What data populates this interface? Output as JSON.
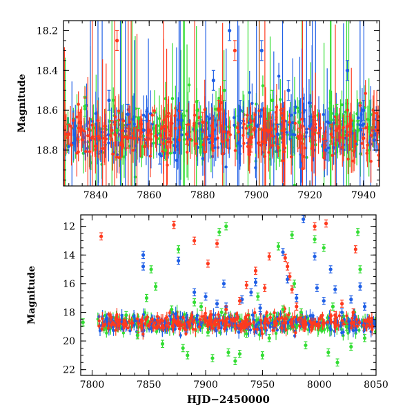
{
  "colors": {
    "blue": "#1f5fe6",
    "green": "#33dd33",
    "red": "#ff3a1e",
    "axis": "#000000"
  },
  "chart_data": [
    {
      "type": "scatter",
      "panel": "top",
      "xlabel": "",
      "ylabel": "Magnitude",
      "xlim": [
        7828,
        7946
      ],
      "ylim": [
        18.98,
        18.15
      ],
      "y_inverted": true,
      "xticks": [
        7840,
        7860,
        7880,
        7900,
        7920,
        7940
      ],
      "yticks": [
        18.2,
        18.4,
        18.6,
        18.8
      ],
      "grid": false,
      "legend": "none",
      "series": [
        {
          "color": "blue",
          "points": [
            [
              7845,
              18.55
            ],
            [
              7852,
              18.62
            ],
            [
              7858,
              18.7
            ],
            [
              7864,
              18.82
            ],
            [
              7872,
              18.65
            ],
            [
              7884,
              18.45
            ],
            [
              7890,
              18.2
            ],
            [
              7894,
              18.6
            ],
            [
              7902,
              18.3
            ],
            [
              7908,
              18.72
            ],
            [
              7912,
              18.5
            ],
            [
              7920,
              18.68
            ],
            [
              7926,
              18.8
            ],
            [
              7934,
              18.4
            ],
            [
              7940,
              18.6
            ],
            [
              7944,
              18.75
            ]
          ]
        },
        {
          "color": "green",
          "points": [
            [
              7836,
              18.58
            ],
            [
              7848,
              18.7
            ],
            [
              7856,
              18.64
            ],
            [
              7866,
              18.8
            ],
            [
              7878,
              18.6
            ],
            [
              7888,
              18.5
            ],
            [
              7898,
              18.72
            ],
            [
              7906,
              18.55
            ],
            [
              7916,
              18.66
            ],
            [
              7930,
              18.62
            ],
            [
              7938,
              18.7
            ]
          ]
        },
        {
          "color": "red",
          "points": [
            [
              7830,
              18.72
            ],
            [
              7834,
              18.66
            ],
            [
              7840,
              18.78
            ],
            [
              7846,
              18.7
            ],
            [
              7848,
              18.25
            ],
            [
              7852,
              18.74
            ],
            [
              7860,
              18.7
            ],
            [
              7866,
              18.68
            ],
            [
              7874,
              18.72
            ],
            [
              7880,
              18.66
            ],
            [
              7886,
              18.6
            ],
            [
              7892,
              18.3
            ],
            [
              7898,
              18.76
            ],
            [
              7904,
              18.7
            ],
            [
              7910,
              18.64
            ],
            [
              7916,
              18.74
            ],
            [
              7922,
              18.7
            ],
            [
              7928,
              18.72
            ],
            [
              7934,
              18.68
            ],
            [
              7940,
              18.74
            ],
            [
              7945,
              18.7
            ]
          ]
        }
      ]
    },
    {
      "type": "scatter",
      "panel": "bottom",
      "xlabel": "HJD−2450000",
      "ylabel": "Magnitude",
      "xlim": [
        7790,
        8050
      ],
      "ylim": [
        22.4,
        11.2
      ],
      "y_inverted": true,
      "xticks": [
        7800,
        7850,
        7900,
        7950,
        8000,
        8050
      ],
      "yticks": [
        12,
        14,
        16,
        18,
        20,
        22
      ],
      "grid": false,
      "legend": "none",
      "series": [
        {
          "color": "blue",
          "points": [
            [
              7845,
              14.0
            ],
            [
              7845,
              14.8
            ],
            [
              7876,
              14.4
            ],
            [
              7890,
              16.6
            ],
            [
              7900,
              16.9
            ],
            [
              7910,
              17.4
            ],
            [
              7916,
              16.0
            ],
            [
              7918,
              17.6
            ],
            [
              7932,
              17.1
            ],
            [
              7940,
              16.6
            ],
            [
              7944,
              15.9
            ],
            [
              7948,
              17.7
            ],
            [
              7968,
              13.8
            ],
            [
              7972,
              15.7
            ],
            [
              7980,
              17.0
            ],
            [
              7986,
              11.5
            ],
            [
              7996,
              14.1
            ],
            [
              7998,
              16.3
            ],
            [
              8004,
              17.2
            ],
            [
              8010,
              15.0
            ],
            [
              8014,
              16.4
            ],
            [
              8020,
              18.0
            ],
            [
              8028,
              17.1
            ],
            [
              8036,
              16.2
            ],
            [
              8040,
              17.6
            ]
          ]
        },
        {
          "color": "green",
          "points": [
            [
              7792,
              18.7
            ],
            [
              7830,
              18.2
            ],
            [
              7840,
              19.6
            ],
            [
              7848,
              17.0
            ],
            [
              7852,
              15.0
            ],
            [
              7856,
              16.2
            ],
            [
              7862,
              20.2
            ],
            [
              7870,
              17.8
            ],
            [
              7876,
              13.6
            ],
            [
              7880,
              20.5
            ],
            [
              7884,
              21.0
            ],
            [
              7890,
              17.3
            ],
            [
              7896,
              17.6
            ],
            [
              7902,
              19.4
            ],
            [
              7906,
              21.2
            ],
            [
              7912,
              12.4
            ],
            [
              7914,
              18.0
            ],
            [
              7918,
              12.0
            ],
            [
              7920,
              20.8
            ],
            [
              7926,
              21.4
            ],
            [
              7930,
              20.9
            ],
            [
              7936,
              19.5
            ],
            [
              7946,
              16.9
            ],
            [
              7950,
              21.0
            ],
            [
              7956,
              19.8
            ],
            [
              7964,
              13.4
            ],
            [
              7968,
              17.8
            ],
            [
              7976,
              12.6
            ],
            [
              7978,
              16.0
            ],
            [
              7984,
              18.0
            ],
            [
              7988,
              20.3
            ],
            [
              7996,
              12.9
            ],
            [
              8004,
              13.5
            ],
            [
              8008,
              20.8
            ],
            [
              8012,
              17.6
            ],
            [
              8016,
              21.5
            ],
            [
              8024,
              19.0
            ],
            [
              8028,
              20.4
            ],
            [
              8034,
              12.4
            ],
            [
              8036,
              15.0
            ],
            [
              8040,
              19.8
            ]
          ]
        },
        {
          "color": "red",
          "points": [
            [
              7808,
              12.7
            ],
            [
              7872,
              11.9
            ],
            [
              7890,
              13.0
            ],
            [
              7902,
              14.6
            ],
            [
              7910,
              13.2
            ],
            [
              7918,
              17.8
            ],
            [
              7930,
              17.2
            ],
            [
              7936,
              16.1
            ],
            [
              7944,
              15.1
            ],
            [
              7952,
              16.3
            ],
            [
              7956,
              14.1
            ],
            [
              7970,
              14.2
            ],
            [
              7972,
              14.8
            ],
            [
              7974,
              15.5
            ],
            [
              7976,
              16.4
            ],
            [
              7980,
              17.6
            ],
            [
              7996,
              12.0
            ],
            [
              8006,
              11.8
            ],
            [
              8014,
              18.2
            ],
            [
              8020,
              17.4
            ],
            [
              8030,
              18.0
            ],
            [
              8032,
              13.6
            ]
          ]
        }
      ]
    }
  ]
}
